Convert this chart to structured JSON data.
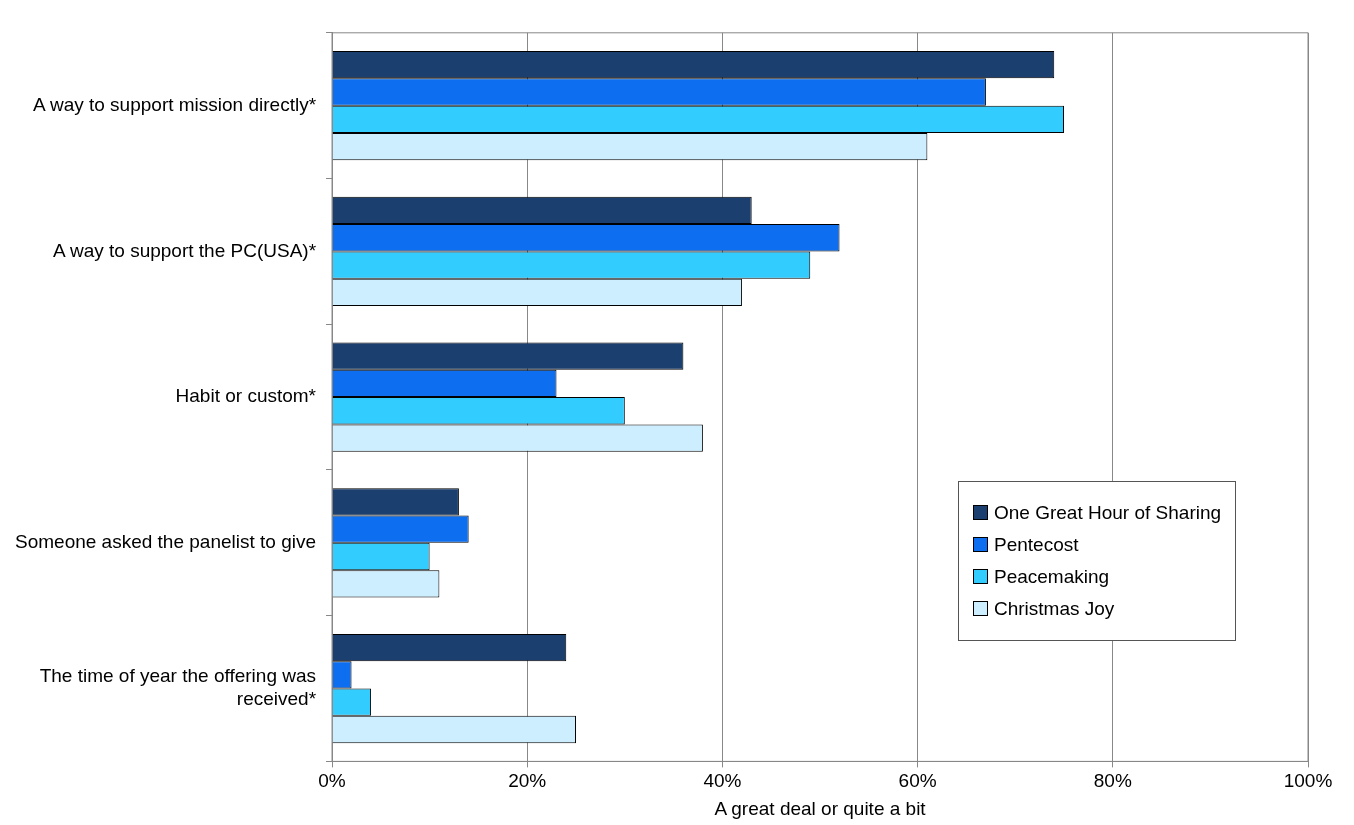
{
  "chart_data": {
    "type": "bar",
    "orientation": "horizontal",
    "xlabel": "A great deal or quite a bit",
    "categories": [
      "A way to support mission directly*",
      "A way to support the PC(USA)*",
      "Habit or custom*",
      "Someone asked the panelist to give",
      "The time of year the offering was received*"
    ],
    "series": [
      {
        "name": "One Great Hour of Sharing",
        "color": "#1b3f6e",
        "values": [
          74,
          43,
          36,
          13,
          24
        ]
      },
      {
        "name": "Pentecost",
        "color": "#0d6ff0",
        "values": [
          67,
          52,
          23,
          14,
          2
        ]
      },
      {
        "name": "Peacemaking",
        "color": "#33ccff",
        "values": [
          75,
          49,
          30,
          10,
          4
        ]
      },
      {
        "name": "Christmas Joy",
        "color": "#cceeff",
        "values": [
          61,
          42,
          38,
          11,
          25
        ]
      }
    ],
    "xlim": [
      0,
      100
    ],
    "xticks": [
      {
        "value": 0,
        "label": "0%"
      },
      {
        "value": 20,
        "label": "20%"
      },
      {
        "value": 40,
        "label": "40%"
      },
      {
        "value": 60,
        "label": "60%"
      },
      {
        "value": 80,
        "label": "80%"
      },
      {
        "value": 100,
        "label": "100%"
      }
    ],
    "grid": "x",
    "legend": "right"
  }
}
